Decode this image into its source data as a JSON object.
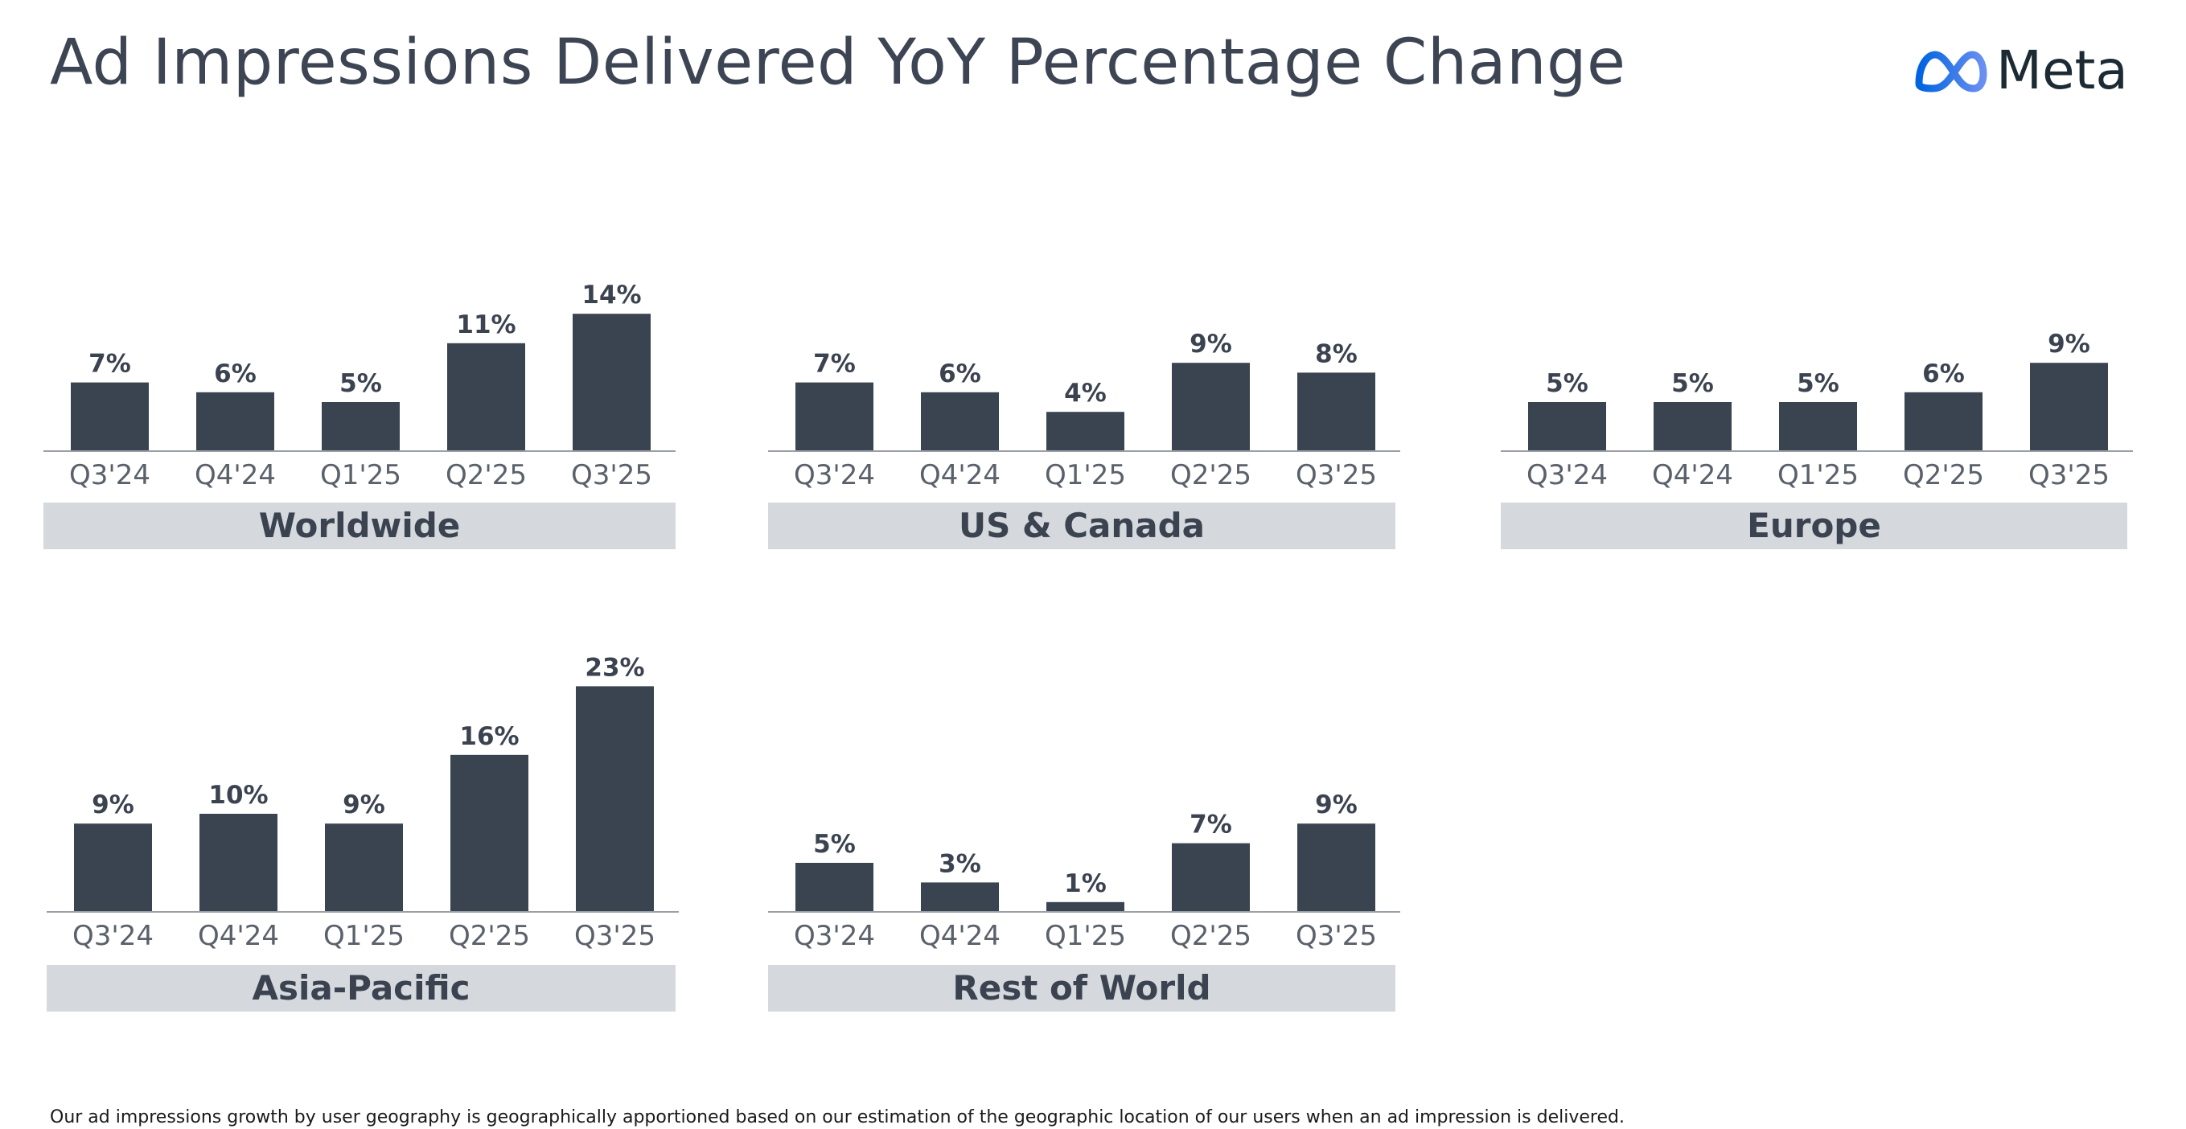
{
  "header": {
    "title": "Ad Impressions Delivered YoY Percentage Change",
    "logo_text": "Meta"
  },
  "footnote": "Our ad impressions growth by user geography is geographically apportioned based on our estimation of the geographic location of our users when an ad impression is delivered.",
  "colors": {
    "bar": "#3a4450",
    "label_band": "#d5d9dd",
    "logo_gradient": [
      "#0064e0",
      "#5e82e8"
    ]
  },
  "chart_data": [
    {
      "type": "bar",
      "region": "Worldwide",
      "categories": [
        "Q3'24",
        "Q4'24",
        "Q1'25",
        "Q2'25",
        "Q3'25"
      ],
      "values": [
        7,
        6,
        5,
        11,
        14
      ],
      "value_labels": [
        "7%",
        "6%",
        "5%",
        "11%",
        "14%"
      ],
      "unit": "%"
    },
    {
      "type": "bar",
      "region": "US & Canada",
      "categories": [
        "Q3'24",
        "Q4'24",
        "Q1'25",
        "Q2'25",
        "Q3'25"
      ],
      "values": [
        7,
        6,
        4,
        9,
        8
      ],
      "value_labels": [
        "7%",
        "6%",
        "4%",
        "9%",
        "8%"
      ],
      "unit": "%"
    },
    {
      "type": "bar",
      "region": "Europe",
      "categories": [
        "Q3'24",
        "Q4'24",
        "Q1'25",
        "Q2'25",
        "Q3'25"
      ],
      "values": [
        5,
        5,
        5,
        6,
        9
      ],
      "value_labels": [
        "5%",
        "5%",
        "5%",
        "6%",
        "9%"
      ],
      "unit": "%"
    },
    {
      "type": "bar",
      "region": "Asia-Pacific",
      "categories": [
        "Q3'24",
        "Q4'24",
        "Q1'25",
        "Q2'25",
        "Q3'25"
      ],
      "values": [
        9,
        10,
        9,
        16,
        23
      ],
      "value_labels": [
        "9%",
        "10%",
        "9%",
        "16%",
        "23%"
      ],
      "unit": "%"
    },
    {
      "type": "bar",
      "region": "Rest of World",
      "categories": [
        "Q3'24",
        "Q4'24",
        "Q1'25",
        "Q2'25",
        "Q3'25"
      ],
      "values": [
        5,
        3,
        1,
        7,
        9
      ],
      "value_labels": [
        "5%",
        "3%",
        "1%",
        "7%",
        "9%"
      ],
      "unit": "%"
    }
  ]
}
